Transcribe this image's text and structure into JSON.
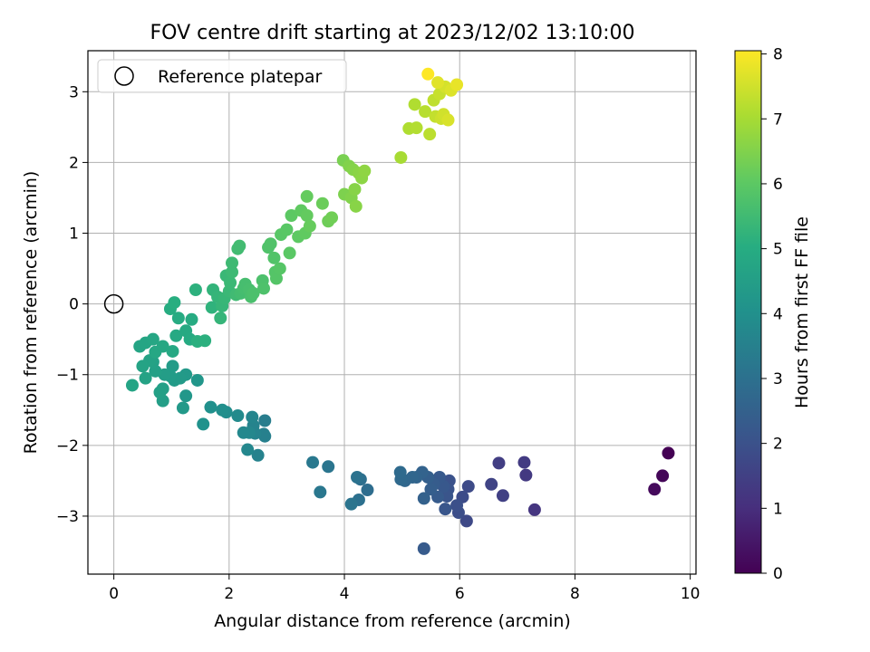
{
  "chart_data": {
    "type": "scatter",
    "title": "FOV centre drift starting at 2023/12/02 13:10:00",
    "xlabel": "Angular distance from reference (arcmin)",
    "ylabel": "Rotation from reference (arcmin)",
    "xlim": [
      -0.45,
      10.1
    ],
    "ylim": [
      -3.82,
      3.58
    ],
    "xticks": [
      0,
      2,
      4,
      6,
      8,
      10
    ],
    "yticks": [
      -3,
      -2,
      -1,
      0,
      1,
      2,
      3
    ],
    "grid": true,
    "legend": {
      "position": "top-left",
      "entries": [
        "Reference platepar"
      ]
    },
    "reference_point": {
      "x": 0,
      "y": 0
    },
    "colorbar": {
      "label": "Hours from first FF file",
      "min": 0,
      "max": 8.05,
      "ticks": [
        0,
        1,
        2,
        3,
        4,
        5,
        6,
        7,
        8
      ],
      "colormap": "viridis"
    },
    "series": [
      {
        "points": [
          [
            9.62,
            -2.11,
            0.0
          ],
          [
            9.52,
            -2.43,
            0.1
          ],
          [
            9.38,
            -2.62,
            0.2
          ],
          [
            7.3,
            -2.91,
            1.2
          ],
          [
            7.15,
            -2.42,
            1.3
          ],
          [
            7.12,
            -2.24,
            1.35
          ],
          [
            6.75,
            -2.71,
            1.5
          ],
          [
            6.68,
            -2.25,
            1.45
          ],
          [
            6.55,
            -2.55,
            1.6
          ],
          [
            6.12,
            -3.07,
            1.75
          ],
          [
            6.15,
            -2.58,
            1.8
          ],
          [
            6.05,
            -2.73,
            1.85
          ],
          [
            5.98,
            -2.95,
            1.9
          ],
          [
            5.95,
            -2.85,
            1.95
          ],
          [
            5.82,
            -2.5,
            2.0
          ],
          [
            5.8,
            -2.62,
            2.05
          ],
          [
            5.78,
            -2.72,
            2.1
          ],
          [
            5.75,
            -2.9,
            2.15
          ],
          [
            5.72,
            -2.58,
            2.2
          ],
          [
            5.65,
            -2.45,
            2.25
          ],
          [
            5.62,
            -2.73,
            2.3
          ],
          [
            5.55,
            -2.55,
            2.35
          ],
          [
            5.5,
            -2.62,
            2.4
          ],
          [
            5.45,
            -2.45,
            2.45
          ],
          [
            5.38,
            -2.75,
            2.5
          ],
          [
            5.35,
            -2.38,
            2.55
          ],
          [
            5.25,
            -2.45,
            2.6
          ],
          [
            5.18,
            -2.45,
            2.65
          ],
          [
            5.05,
            -2.5,
            2.7
          ],
          [
            4.98,
            -2.48,
            2.75
          ],
          [
            4.97,
            -2.38,
            2.8
          ],
          [
            5.38,
            -3.46,
            2.3
          ],
          [
            4.4,
            -2.63,
            2.9
          ],
          [
            4.28,
            -2.48,
            2.95
          ],
          [
            4.25,
            -2.77,
            3.0
          ],
          [
            4.22,
            -2.45,
            3.05
          ],
          [
            4.12,
            -2.83,
            3.1
          ],
          [
            3.72,
            -2.3,
            3.15
          ],
          [
            3.58,
            -2.66,
            3.2
          ],
          [
            3.45,
            -2.24,
            3.25
          ],
          [
            2.62,
            -1.65,
            3.4
          ],
          [
            2.62,
            -1.87,
            3.45
          ],
          [
            2.6,
            -1.84,
            3.5
          ],
          [
            2.5,
            -2.14,
            3.55
          ],
          [
            2.45,
            -1.83,
            3.6
          ],
          [
            2.42,
            -1.72,
            3.6
          ],
          [
            2.4,
            -1.6,
            3.65
          ],
          [
            2.35,
            -1.82,
            3.7
          ],
          [
            2.32,
            -2.06,
            3.72
          ],
          [
            2.25,
            -1.82,
            3.75
          ],
          [
            2.15,
            -1.58,
            3.8
          ],
          [
            1.95,
            -1.53,
            3.9
          ],
          [
            1.88,
            -1.5,
            3.95
          ],
          [
            1.68,
            -1.46,
            4.0
          ],
          [
            1.55,
            -1.7,
            4.05
          ],
          [
            1.45,
            -1.08,
            4.2
          ],
          [
            1.25,
            -1.3,
            4.25
          ],
          [
            1.25,
            -1.0,
            4.3
          ],
          [
            1.2,
            -1.47,
            4.32
          ],
          [
            1.15,
            -1.05,
            4.35
          ],
          [
            1.05,
            -1.08,
            4.38
          ],
          [
            1.02,
            -0.88,
            4.4
          ],
          [
            0.98,
            -1.02,
            4.42
          ],
          [
            0.88,
            -1.0,
            4.45
          ],
          [
            0.85,
            -1.37,
            4.5
          ],
          [
            0.85,
            -1.2,
            4.52
          ],
          [
            0.8,
            -1.25,
            4.55
          ],
          [
            0.72,
            -0.95,
            4.58
          ],
          [
            0.68,
            -0.82,
            4.6
          ],
          [
            0.62,
            -0.8,
            4.62
          ],
          [
            0.55,
            -1.05,
            4.65
          ],
          [
            0.5,
            -0.88,
            4.68
          ],
          [
            0.32,
            -1.15,
            4.7
          ],
          [
            0.45,
            -0.6,
            4.72
          ],
          [
            0.55,
            -0.55,
            4.75
          ],
          [
            0.68,
            -0.5,
            4.78
          ],
          [
            0.72,
            -0.68,
            4.8
          ],
          [
            0.85,
            -0.6,
            4.82
          ],
          [
            1.02,
            -0.67,
            4.85
          ],
          [
            1.08,
            -0.45,
            4.88
          ],
          [
            1.25,
            -0.38,
            4.9
          ],
          [
            1.32,
            -0.5,
            4.92
          ],
          [
            1.35,
            -0.22,
            4.95
          ],
          [
            1.12,
            -0.2,
            4.97
          ],
          [
            0.98,
            -0.07,
            5.0
          ],
          [
            1.05,
            0.02,
            5.05
          ],
          [
            1.45,
            -0.53,
            5.1
          ],
          [
            1.58,
            -0.52,
            5.12
          ],
          [
            1.42,
            0.2,
            5.15
          ],
          [
            1.7,
            -0.05,
            5.2
          ],
          [
            1.72,
            0.2,
            5.25
          ],
          [
            1.8,
            0.1,
            5.28
          ],
          [
            1.85,
            -0.2,
            5.3
          ],
          [
            1.88,
            -0.03,
            5.32
          ],
          [
            1.92,
            0.08,
            5.35
          ],
          [
            1.95,
            0.4,
            5.38
          ],
          [
            2.0,
            0.18,
            5.4
          ],
          [
            2.02,
            0.3,
            5.42
          ],
          [
            2.05,
            0.45,
            5.45
          ],
          [
            2.05,
            0.58,
            5.47
          ],
          [
            2.12,
            0.13,
            5.5
          ],
          [
            2.15,
            0.78,
            5.52
          ],
          [
            2.18,
            0.82,
            5.55
          ],
          [
            2.2,
            0.15,
            5.57
          ],
          [
            2.25,
            0.22,
            5.6
          ],
          [
            2.28,
            0.28,
            5.62
          ],
          [
            2.35,
            0.2,
            5.65
          ],
          [
            2.38,
            0.1,
            5.67
          ],
          [
            2.42,
            0.15,
            5.7
          ],
          [
            2.58,
            0.33,
            5.72
          ],
          [
            2.6,
            0.22,
            5.75
          ],
          [
            2.68,
            0.8,
            5.78
          ],
          [
            2.72,
            0.85,
            5.8
          ],
          [
            2.78,
            0.65,
            5.82
          ],
          [
            2.8,
            0.45,
            5.85
          ],
          [
            2.82,
            0.36,
            5.87
          ],
          [
            2.88,
            0.5,
            5.9
          ],
          [
            2.9,
            0.98,
            5.92
          ],
          [
            3.0,
            1.05,
            5.95
          ],
          [
            3.05,
            0.72,
            5.97
          ],
          [
            3.08,
            1.25,
            6.0
          ],
          [
            3.2,
            0.95,
            6.02
          ],
          [
            3.25,
            1.32,
            6.05
          ],
          [
            3.32,
            1.0,
            6.07
          ],
          [
            3.35,
            1.25,
            6.1
          ],
          [
            3.35,
            1.52,
            6.12
          ],
          [
            3.4,
            1.1,
            6.15
          ],
          [
            3.62,
            1.42,
            6.2
          ],
          [
            3.72,
            1.17,
            6.25
          ],
          [
            3.78,
            1.22,
            6.28
          ],
          [
            3.98,
            2.03,
            6.4
          ],
          [
            4.0,
            1.55,
            6.45
          ],
          [
            4.08,
            1.95,
            6.5
          ],
          [
            4.12,
            1.5,
            6.52
          ],
          [
            4.15,
            1.9,
            6.55
          ],
          [
            4.18,
            1.62,
            6.58
          ],
          [
            4.2,
            1.38,
            6.6
          ],
          [
            4.25,
            1.85,
            6.62
          ],
          [
            4.3,
            1.78,
            6.65
          ],
          [
            4.35,
            1.88,
            6.68
          ],
          [
            4.98,
            2.07,
            7.0
          ],
          [
            5.12,
            2.48,
            7.1
          ],
          [
            5.22,
            2.82,
            7.12
          ],
          [
            5.25,
            2.49,
            7.15
          ],
          [
            5.4,
            2.72,
            7.2
          ],
          [
            5.48,
            2.4,
            7.25
          ],
          [
            5.55,
            2.88,
            7.3
          ],
          [
            5.58,
            2.65,
            7.35
          ],
          [
            5.65,
            2.97,
            7.4
          ],
          [
            5.68,
            2.62,
            7.45
          ],
          [
            5.72,
            2.68,
            7.5
          ],
          [
            5.75,
            3.07,
            7.55
          ],
          [
            5.8,
            2.6,
            7.6
          ],
          [
            5.85,
            3.02,
            7.65
          ],
          [
            5.62,
            3.13,
            7.7
          ],
          [
            5.95,
            3.1,
            7.8
          ],
          [
            5.45,
            3.25,
            8.05
          ]
        ]
      }
    ]
  }
}
